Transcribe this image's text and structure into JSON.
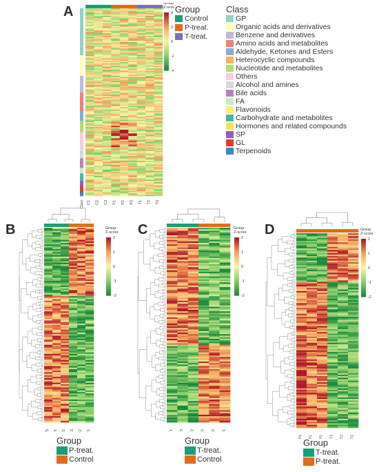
{
  "panels": {
    "A": {
      "letter": "A",
      "columns": [
        "C1",
        "C2",
        "C3",
        "P1",
        "P2",
        "P3",
        "T1",
        "T2",
        "T3"
      ],
      "first_axis_label": "Class",
      "groups_top": [
        "Control",
        "P-treat.",
        "T-treat."
      ],
      "colorbar": {
        "title": "Group\nZ-score",
        "ticks": [
          "4",
          "2",
          "0",
          "-2",
          "-4"
        ]
      },
      "group_legend": {
        "title": "Group",
        "items": [
          {
            "label": "Control",
            "color": "#1a9e77"
          },
          {
            "label": "P-treat.",
            "color": "#e06c1b"
          },
          {
            "label": "T-treat.",
            "color": "#7d6fbf"
          }
        ]
      },
      "class_legend": {
        "title": "Class",
        "items": [
          {
            "label": "GP",
            "color": "#8fd3c7"
          },
          {
            "label": "Organic acids and derivatives",
            "color": "#fefdb4"
          },
          {
            "label": "Benzene and derivatives",
            "color": "#bdb9d9"
          },
          {
            "label": "Amino acids and metabolites",
            "color": "#f47f72"
          },
          {
            "label": "Aldehyde, Ketones and Esters",
            "color": "#7fb0d2"
          },
          {
            "label": "Heterocyclic compounds",
            "color": "#fbb362"
          },
          {
            "label": "Nucleotide and metabolites",
            "color": "#b2de69"
          },
          {
            "label": "Others",
            "color": "#f8ccdf"
          },
          {
            "label": "Alcohol and amines",
            "color": "#d8d8d8"
          },
          {
            "label": "Bile acids",
            "color": "#bb80bc"
          },
          {
            "label": "FA",
            "color": "#ccebc5"
          },
          {
            "label": "Flavonoids",
            "color": "#feed6f"
          },
          {
            "label": "Carbohydrate and metabolites",
            "color": "#4cb89b"
          },
          {
            "label": "Hormones and related compounds",
            "color": "#fde24f"
          },
          {
            "label": "SP",
            "color": "#9b59b6"
          },
          {
            "label": "GL",
            "color": "#e23b2c"
          },
          {
            "label": "Terpenoids",
            "color": "#3e86bf"
          }
        ]
      }
    },
    "B": {
      "letter": "B",
      "columns": [
        "P3",
        "P1",
        "P2",
        "C3",
        "C2",
        "C1"
      ],
      "colorbar": {
        "title": "Group\nZ-score",
        "ticks": [
          "2",
          "1",
          "0",
          "-1",
          "-2"
        ]
      },
      "group_legend": {
        "title": "Group",
        "items": [
          {
            "label": "P-treat.",
            "color": "#1a9e77"
          },
          {
            "label": "Control",
            "color": "#e06c1b"
          }
        ]
      }
    },
    "C": {
      "letter": "C",
      "columns": [
        "T1",
        "T3",
        "T2",
        "C3",
        "C2",
        "C1"
      ],
      "colorbar": {
        "title": "Group\nZ-score",
        "ticks": [
          "2",
          "1",
          "0",
          "-1",
          "-2"
        ]
      },
      "group_legend": {
        "title": "Group",
        "items": [
          {
            "label": "T-treat.",
            "color": "#1a9e77"
          },
          {
            "label": "Control",
            "color": "#e06c1b"
          }
        ]
      }
    },
    "D": {
      "letter": "D",
      "columns": [
        "P3",
        "P1",
        "P2",
        "T3",
        "T2",
        "T1"
      ],
      "colorbar": {
        "title": "Group\nZ-score",
        "ticks": [
          "2",
          "1",
          "0",
          "-1",
          "-2"
        ]
      },
      "group_legend": {
        "title": "Group",
        "items": [
          {
            "label": "T-treat.",
            "color": "#1a9e77"
          },
          {
            "label": "P-treat.",
            "color": "#e06c1b"
          }
        ]
      }
    }
  },
  "colors": {
    "heat_high": "#b2182b",
    "heat_mid_high": "#f4a35a",
    "heat_mid": "#f7f6a8",
    "heat_mid_low": "#8ccf6a",
    "heat_low": "#1b8a3f",
    "control": "#1a9e77",
    "p_treat": "#e06c1b",
    "t_treat": "#7d6fbf"
  }
}
